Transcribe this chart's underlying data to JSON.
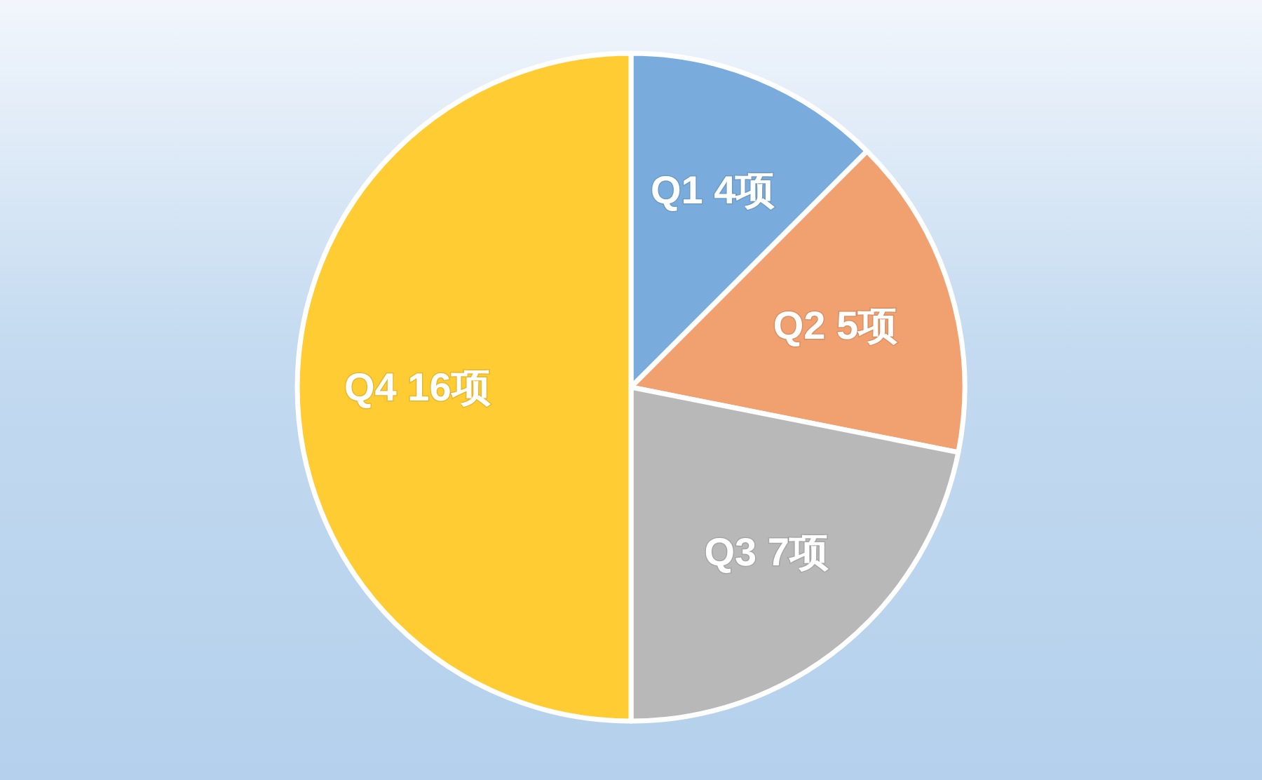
{
  "chart_data": {
    "type": "pie",
    "categories": [
      "Q1",
      "Q2",
      "Q3",
      "Q4"
    ],
    "values": [
      4,
      5,
      7,
      16
    ],
    "colors": [
      "#79acdc",
      "#f1a16f",
      "#b8b8b8",
      "#ffcc33"
    ],
    "value_labels": [
      "4项",
      "5项",
      "7项",
      "16项"
    ]
  }
}
